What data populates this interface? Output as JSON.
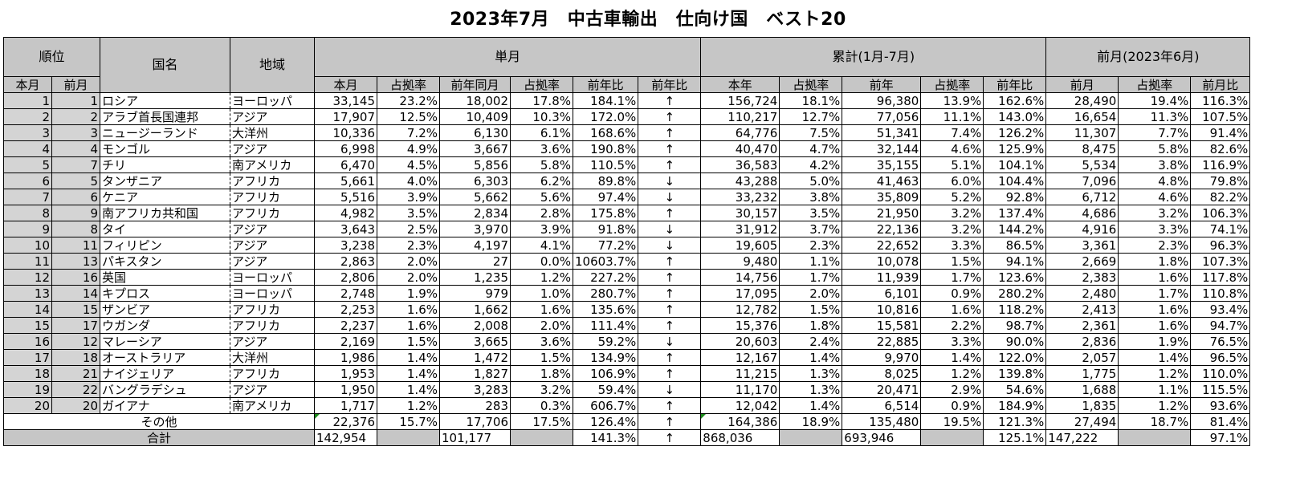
{
  "title": "2023年7月　中古車輸出　仕向け国　ベスト20",
  "headers": {
    "rank": "順位",
    "country": "国名",
    "region": "地域",
    "monthly": "単月",
    "cumulative": "累計(1月-7月)",
    "prev_month": "前月(2023年6月)",
    "rank_cur": "本月",
    "rank_prev": "前月",
    "m_cur": "本月",
    "m_share": "占拠率",
    "m_ly": "前年同月",
    "m_ly_share": "占拠率",
    "m_yoy": "前年比",
    "m_yoy_arrow": "前年比",
    "c_cur": "本年",
    "c_share": "占拠率",
    "c_ly": "前年",
    "c_ly_share": "占拠率",
    "c_yoy": "前年比",
    "p_val": "前月",
    "p_share": "占拠率",
    "p_mom": "前月比"
  },
  "rows": [
    {
      "rank": "1",
      "prev": "1",
      "country": "ロシア",
      "region": "ヨーロッパ",
      "m": "33,145",
      "ms": "23.2%",
      "ly": "18,002",
      "lys": "17.8%",
      "yoy": "184.1%",
      "arrow": "↑",
      "c": "156,724",
      "cs": "18.1%",
      "cly": "96,380",
      "clys": "13.9%",
      "cyoy": "162.6%",
      "p": "28,490",
      "ps": "19.4%",
      "pm": "116.3%"
    },
    {
      "rank": "2",
      "prev": "2",
      "country": "アラブ首長国連邦",
      "region": "アジア",
      "m": "17,907",
      "ms": "12.5%",
      "ly": "10,409",
      "lys": "10.3%",
      "yoy": "172.0%",
      "arrow": "↑",
      "c": "110,217",
      "cs": "12.7%",
      "cly": "77,056",
      "clys": "11.1%",
      "cyoy": "143.0%",
      "p": "16,654",
      "ps": "11.3%",
      "pm": "107.5%"
    },
    {
      "rank": "3",
      "prev": "3",
      "country": "ニュージーランド",
      "region": "大洋州",
      "m": "10,336",
      "ms": "7.2%",
      "ly": "6,130",
      "lys": "6.1%",
      "yoy": "168.6%",
      "arrow": "↑",
      "c": "64,776",
      "cs": "7.5%",
      "cly": "51,341",
      "clys": "7.4%",
      "cyoy": "126.2%",
      "p": "11,307",
      "ps": "7.7%",
      "pm": "91.4%"
    },
    {
      "rank": "4",
      "prev": "4",
      "country": "モンゴル",
      "region": "アジア",
      "m": "6,998",
      "ms": "4.9%",
      "ly": "3,667",
      "lys": "3.6%",
      "yoy": "190.8%",
      "arrow": "↑",
      "c": "40,470",
      "cs": "4.7%",
      "cly": "32,144",
      "clys": "4.6%",
      "cyoy": "125.9%",
      "p": "8,475",
      "ps": "5.8%",
      "pm": "82.6%"
    },
    {
      "rank": "5",
      "prev": "7",
      "country": "チリ",
      "region": "南アメリカ",
      "m": "6,470",
      "ms": "4.5%",
      "ly": "5,856",
      "lys": "5.8%",
      "yoy": "110.5%",
      "arrow": "↑",
      "c": "36,583",
      "cs": "4.2%",
      "cly": "35,155",
      "clys": "5.1%",
      "cyoy": "104.1%",
      "p": "5,534",
      "ps": "3.8%",
      "pm": "116.9%"
    },
    {
      "rank": "6",
      "prev": "5",
      "country": "タンザニア",
      "region": "アフリカ",
      "m": "5,661",
      "ms": "4.0%",
      "ly": "6,303",
      "lys": "6.2%",
      "yoy": "89.8%",
      "arrow": "↓",
      "c": "43,288",
      "cs": "5.0%",
      "cly": "41,463",
      "clys": "6.0%",
      "cyoy": "104.4%",
      "p": "7,096",
      "ps": "4.8%",
      "pm": "79.8%"
    },
    {
      "rank": "7",
      "prev": "6",
      "country": "ケニア",
      "region": "アフリカ",
      "m": "5,516",
      "ms": "3.9%",
      "ly": "5,662",
      "lys": "5.6%",
      "yoy": "97.4%",
      "arrow": "↓",
      "c": "33,232",
      "cs": "3.8%",
      "cly": "35,809",
      "clys": "5.2%",
      "cyoy": "92.8%",
      "p": "6,712",
      "ps": "4.6%",
      "pm": "82.2%"
    },
    {
      "rank": "8",
      "prev": "9",
      "country": "南アフリカ共和国",
      "region": "アフリカ",
      "m": "4,982",
      "ms": "3.5%",
      "ly": "2,834",
      "lys": "2.8%",
      "yoy": "175.8%",
      "arrow": "↑",
      "c": "30,157",
      "cs": "3.5%",
      "cly": "21,950",
      "clys": "3.2%",
      "cyoy": "137.4%",
      "p": "4,686",
      "ps": "3.2%",
      "pm": "106.3%"
    },
    {
      "rank": "9",
      "prev": "8",
      "country": "タイ",
      "region": "アジア",
      "m": "3,643",
      "ms": "2.5%",
      "ly": "3,970",
      "lys": "3.9%",
      "yoy": "91.8%",
      "arrow": "↓",
      "c": "31,912",
      "cs": "3.7%",
      "cly": "22,136",
      "clys": "3.2%",
      "cyoy": "144.2%",
      "p": "4,916",
      "ps": "3.3%",
      "pm": "74.1%"
    },
    {
      "rank": "10",
      "prev": "11",
      "country": "フィリピン",
      "region": "アジア",
      "m": "3,238",
      "ms": "2.3%",
      "ly": "4,197",
      "lys": "4.1%",
      "yoy": "77.2%",
      "arrow": "↓",
      "c": "19,605",
      "cs": "2.3%",
      "cly": "22,652",
      "clys": "3.3%",
      "cyoy": "86.5%",
      "p": "3,361",
      "ps": "2.3%",
      "pm": "96.3%"
    },
    {
      "rank": "11",
      "prev": "13",
      "country": "パキスタン",
      "region": "アジア",
      "m": "2,863",
      "ms": "2.0%",
      "ly": "27",
      "lys": "0.0%",
      "yoy": "10603.7%",
      "arrow": "↑",
      "c": "9,480",
      "cs": "1.1%",
      "cly": "10,078",
      "clys": "1.5%",
      "cyoy": "94.1%",
      "p": "2,669",
      "ps": "1.8%",
      "pm": "107.3%"
    },
    {
      "rank": "12",
      "prev": "16",
      "country": "英国",
      "region": "ヨーロッパ",
      "m": "2,806",
      "ms": "2.0%",
      "ly": "1,235",
      "lys": "1.2%",
      "yoy": "227.2%",
      "arrow": "↑",
      "c": "14,756",
      "cs": "1.7%",
      "cly": "11,939",
      "clys": "1.7%",
      "cyoy": "123.6%",
      "p": "2,383",
      "ps": "1.6%",
      "pm": "117.8%"
    },
    {
      "rank": "13",
      "prev": "14",
      "country": "キプロス",
      "region": "ヨーロッパ",
      "m": "2,748",
      "ms": "1.9%",
      "ly": "979",
      "lys": "1.0%",
      "yoy": "280.7%",
      "arrow": "↑",
      "c": "17,095",
      "cs": "2.0%",
      "cly": "6,101",
      "clys": "0.9%",
      "cyoy": "280.2%",
      "p": "2,480",
      "ps": "1.7%",
      "pm": "110.8%"
    },
    {
      "rank": "14",
      "prev": "15",
      "country": "ザンビア",
      "region": "アフリカ",
      "m": "2,253",
      "ms": "1.6%",
      "ly": "1,662",
      "lys": "1.6%",
      "yoy": "135.6%",
      "arrow": "↑",
      "c": "12,782",
      "cs": "1.5%",
      "cly": "10,816",
      "clys": "1.6%",
      "cyoy": "118.2%",
      "p": "2,413",
      "ps": "1.6%",
      "pm": "93.4%"
    },
    {
      "rank": "15",
      "prev": "17",
      "country": "ウガンダ",
      "region": "アフリカ",
      "m": "2,237",
      "ms": "1.6%",
      "ly": "2,008",
      "lys": "2.0%",
      "yoy": "111.4%",
      "arrow": "↑",
      "c": "15,376",
      "cs": "1.8%",
      "cly": "15,581",
      "clys": "2.2%",
      "cyoy": "98.7%",
      "p": "2,361",
      "ps": "1.6%",
      "pm": "94.7%"
    },
    {
      "rank": "16",
      "prev": "12",
      "country": "マレーシア",
      "region": "アジア",
      "m": "2,169",
      "ms": "1.5%",
      "ly": "3,665",
      "lys": "3.6%",
      "yoy": "59.2%",
      "arrow": "↓",
      "c": "20,603",
      "cs": "2.4%",
      "cly": "22,885",
      "clys": "3.3%",
      "cyoy": "90.0%",
      "p": "2,836",
      "ps": "1.9%",
      "pm": "76.5%"
    },
    {
      "rank": "17",
      "prev": "18",
      "country": "オーストラリア",
      "region": "大洋州",
      "m": "1,986",
      "ms": "1.4%",
      "ly": "1,472",
      "lys": "1.5%",
      "yoy": "134.9%",
      "arrow": "↑",
      "c": "12,167",
      "cs": "1.4%",
      "cly": "9,970",
      "clys": "1.4%",
      "cyoy": "122.0%",
      "p": "2,057",
      "ps": "1.4%",
      "pm": "96.5%"
    },
    {
      "rank": "18",
      "prev": "21",
      "country": "ナイジェリア",
      "region": "アフリカ",
      "m": "1,953",
      "ms": "1.4%",
      "ly": "1,827",
      "lys": "1.8%",
      "yoy": "106.9%",
      "arrow": "↑",
      "c": "11,215",
      "cs": "1.3%",
      "cly": "8,025",
      "clys": "1.2%",
      "cyoy": "139.8%",
      "p": "1,775",
      "ps": "1.2%",
      "pm": "110.0%"
    },
    {
      "rank": "19",
      "prev": "22",
      "country": "バングラデシュ",
      "region": "アジア",
      "m": "1,950",
      "ms": "1.4%",
      "ly": "3,283",
      "lys": "3.2%",
      "yoy": "59.4%",
      "arrow": "↓",
      "c": "11,170",
      "cs": "1.3%",
      "cly": "20,471",
      "clys": "2.9%",
      "cyoy": "54.6%",
      "p": "1,688",
      "ps": "1.1%",
      "pm": "115.5%"
    },
    {
      "rank": "20",
      "prev": "20",
      "country": "ガイアナ",
      "region": "南アメリカ",
      "m": "1,717",
      "ms": "1.2%",
      "ly": "283",
      "lys": "0.3%",
      "yoy": "606.7%",
      "arrow": "↑",
      "c": "12,042",
      "cs": "1.4%",
      "cly": "6,514",
      "clys": "0.9%",
      "cyoy": "184.9%",
      "p": "1,835",
      "ps": "1.2%",
      "pm": "93.6%"
    }
  ],
  "other": {
    "label": "その他",
    "m": "22,376",
    "ms": "15.7%",
    "ly": "17,706",
    "lys": "17.5%",
    "yoy": "126.4%",
    "arrow": "↑",
    "c": "164,386",
    "cs": "18.9%",
    "cly": "135,480",
    "clys": "19.5%",
    "cyoy": "121.3%",
    "p": "27,494",
    "ps": "18.7%",
    "pm": "81.4%"
  },
  "total": {
    "label": "合計",
    "m": "142,954",
    "ly": "101,177",
    "yoy": "141.3%",
    "arrow": "↑",
    "c": "868,036",
    "cly": "693,946",
    "cyoy": "125.1%",
    "p": "147,222",
    "pm": "97.1%"
  },
  "colors": {
    "header_bg": "#c6c6c6",
    "rank_bg": "#d4d4d4",
    "comment_marker": "#1a8a1a"
  }
}
